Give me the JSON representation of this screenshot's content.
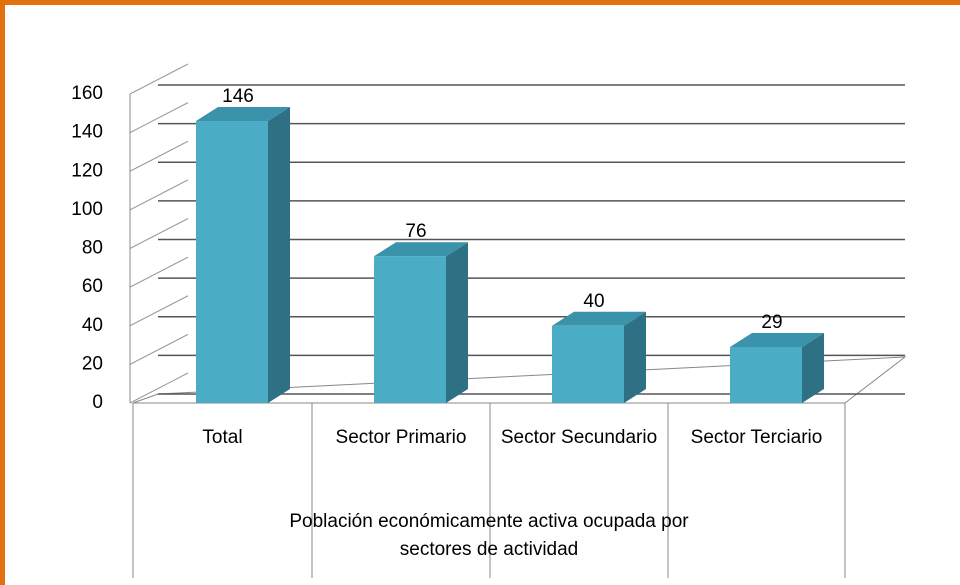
{
  "chart_data": {
    "type": "bar",
    "x_label": "Población económicamente activa ocupada por sectores de actividad",
    "categories": [
      "Total",
      "Sector Primario",
      "Sector Secundario",
      "Sector Terciario"
    ],
    "values": [
      146,
      76,
      40,
      29
    ],
    "color": "#4bacc6",
    "ylim": [
      0,
      160
    ],
    "yticks": [
      0,
      20,
      40,
      60,
      80,
      100,
      120,
      140,
      160
    ],
    "grid": true
  }
}
